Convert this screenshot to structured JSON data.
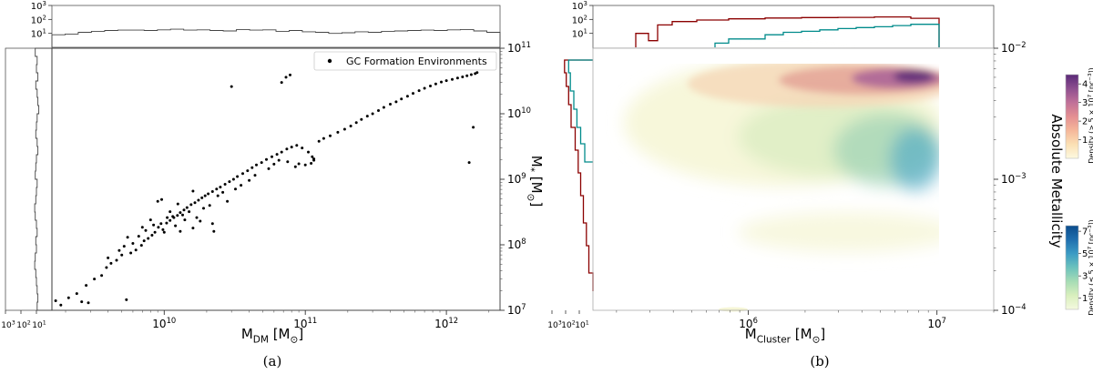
{
  "colors": {
    "scatter": "#000000",
    "histogram_a": "#444444",
    "dense_hist": "#8b0000",
    "sparse_hist": "#008b8b",
    "cmap_dense": [
      "#fdf9e0",
      "#fbe0b4",
      "#f5b79a",
      "#e48f92",
      "#c07098",
      "#8e4f8f",
      "#5b2a78"
    ],
    "cmap_sparse": [
      "#f4f9df",
      "#d9efbd",
      "#a6dcb5",
      "#6cc2bd",
      "#3c9bc4",
      "#1f6fae",
      "#0b4c8c"
    ]
  },
  "chart_data": [
    {
      "panel": "a",
      "caption": "(a)",
      "type": "scatter",
      "xlabel_html": [
        "M",
        "DM",
        " [M",
        "⊙",
        "]"
      ],
      "ylabel_html": [
        "M",
        "*",
        " [M",
        "⊙",
        "]"
      ],
      "x_scale": "log",
      "y_scale": "log",
      "xlim": [
        1600000000.0,
        2400000000000.0
      ],
      "ylim": [
        10000000.0,
        100000000000.0
      ],
      "x_ticks": [
        {
          "v": 10000000000.0,
          "base": "10",
          "exp": "10"
        },
        {
          "v": 100000000000.0,
          "base": "10",
          "exp": "11"
        },
        {
          "v": 1000000000000.0,
          "base": "10",
          "exp": "12"
        }
      ],
      "y_ticks": [
        {
          "v": 10000000.0,
          "base": "10",
          "exp": "7"
        },
        {
          "v": 100000000.0,
          "base": "10",
          "exp": "8"
        },
        {
          "v": 1000000000.0,
          "base": "10",
          "exp": "9"
        },
        {
          "v": 10000000000.0,
          "base": "10",
          "exp": "10"
        },
        {
          "v": 100000000000.0,
          "base": "10",
          "exp": "11"
        }
      ],
      "hist_ticks": [
        {
          "v": 1000,
          "base": "10",
          "exp": "3"
        },
        {
          "v": 100,
          "base": "10",
          "exp": "2"
        },
        {
          "v": 10,
          "base": "10",
          "exp": "1"
        }
      ],
      "legend": {
        "label": "GC Formation Environments",
        "position": "top-right"
      },
      "series": [
        {
          "name": "GC Formation Environments",
          "points": [
            [
              1700000000.0,
              14000000.0
            ],
            [
              1850000000.0,
              12000000.0
            ],
            [
              2100000000.0,
              15500000.0
            ],
            [
              2600000000.0,
              13500000.0
            ],
            [
              2900000000.0,
              13000000.0
            ],
            [
              2400000000.0,
              18000000.0
            ],
            [
              2800000000.0,
              24000000.0
            ],
            [
              3200000000.0,
              30000000.0
            ],
            [
              3600000000.0,
              34000000.0
            ],
            [
              3900000000.0,
              45000000.0
            ],
            [
              4200000000.0,
              52000000.0
            ],
            [
              4000000000.0,
              63000000.0
            ],
            [
              4600000000.0,
              58000000.0
            ],
            [
              5000000000.0,
              70000000.0
            ],
            [
              5400000000.0,
              14500000.0
            ],
            [
              5800000000.0,
              75000000.0
            ],
            [
              5200000000.0,
              95000000.0
            ],
            [
              6300000000.0,
              83000000.0
            ],
            [
              6900000000.0,
              98000000.0
            ],
            [
              7200000000.0,
              115000000.0
            ],
            [
              7700000000.0,
              125000000.0
            ],
            [
              8200000000.0,
              140000000.0
            ],
            [
              7400000000.0,
              165000000.0
            ],
            [
              8600000000.0,
              155000000.0
            ],
            [
              9100000000.0,
              185000000.0
            ],
            [
              9800000000.0,
              170000000.0
            ],
            [
              10400000000.0,
              215000000.0
            ],
            [
              11000000000.0,
              235000000.0
            ],
            [
              11700000000.0,
              260000000.0
            ],
            [
              12400000000.0,
              280000000.0
            ],
            [
              13000000000.0,
              310000000.0
            ],
            [
              13800000000.0,
              340000000.0
            ],
            [
              14500000000.0,
              370000000.0
            ],
            [
              15500000000.0,
              410000000.0
            ],
            [
              16500000000.0,
              440000000.0
            ],
            [
              17500000000.0,
              480000000.0
            ],
            [
              18500000000.0,
              520000000.0
            ],
            [
              19500000000.0,
              560000000.0
            ],
            [
              20500000000.0,
              600000000.0
            ],
            [
              22000000000.0,
              650000000.0
            ],
            [
              23500000000.0,
              710000000.0
            ],
            [
              25000000000.0,
              760000000.0
            ],
            [
              27000000000.0,
              840000000.0
            ],
            [
              29000000000.0,
              920000000.0
            ],
            [
              31000000000.0,
              1000000000.0
            ],
            [
              33000000000.0,
              1100000000.0
            ],
            [
              36000000000.0,
              1220000000.0
            ],
            [
              39000000000.0,
              1350000000.0
            ],
            [
              42000000000.0,
              1500000000.0
            ],
            [
              45000000000.0,
              1650000000.0
            ],
            [
              49000000000.0,
              1800000000.0
            ],
            [
              53000000000.0,
              2000000000.0
            ],
            [
              58000000000.0,
              2200000000.0
            ],
            [
              63000000000.0,
              2400000000.0
            ],
            [
              68000000000.0,
              2600000000.0
            ],
            [
              74000000000.0,
              2900000000.0
            ],
            [
              80000000000.0,
              3100000000.0
            ],
            [
              87000000000.0,
              3300000000.0
            ],
            [
              95000000000.0,
              3000000000.0
            ],
            [
              105000000000.0,
              2600000000.0
            ],
            [
              112000000000.0,
              2200000000.0
            ],
            [
              115000000000.0,
              1950000000.0
            ],
            [
              110000000000.0,
              1750000000.0
            ],
            [
              100000000000.0,
              1650000000.0
            ],
            [
              90000000000.0,
              1720000000.0
            ],
            [
              75000000000.0,
              1850000000.0
            ],
            [
              65000000000.0,
              1950000000.0
            ],
            [
              85000000000.0,
              1550000000.0
            ],
            [
              115000000000.0,
              2050000000.0
            ],
            [
              125000000000.0,
              3800000000.0
            ],
            [
              135000000000.0,
              4200000000.0
            ],
            [
              150000000000.0,
              4600000000.0
            ],
            [
              170000000000.0,
              5200000000.0
            ],
            [
              190000000000.0,
              5800000000.0
            ],
            [
              210000000000.0,
              6500000000.0
            ],
            [
              230000000000.0,
              7300000000.0
            ],
            [
              250000000000.0,
              8200000000.0
            ],
            [
              275000000000.0,
              9200000000.0
            ],
            [
              300000000000.0,
              10000000000.0
            ],
            [
              330000000000.0,
              11200000000.0
            ],
            [
              360000000000.0,
              12500000000.0
            ],
            [
              400000000000.0,
              14000000000.0
            ],
            [
              440000000000.0,
              15200000000.0
            ],
            [
              480000000000.0,
              16800000000.0
            ],
            [
              530000000000.0,
              18500000000.0
            ],
            [
              580000000000.0,
              20500000000.0
            ],
            [
              640000000000.0,
              22500000000.0
            ],
            [
              700000000000.0,
              24500000000.0
            ],
            [
              770000000000.0,
              26500000000.0
            ],
            [
              840000000000.0,
              28500000000.0
            ],
            [
              920000000000.0,
              30500000000.0
            ],
            [
              1000000000000.0,
              32000000000.0
            ],
            [
              1100000000000.0,
              33500000000.0
            ],
            [
              1200000000000.0,
              35000000000.0
            ],
            [
              1300000000000.0,
              36500000000.0
            ],
            [
              1400000000000.0,
              38000000000.0
            ],
            [
              1500000000000.0,
              39500000000.0
            ],
            [
              1600000000000.0,
              41000000000.0
            ],
            [
              1650000000000.0,
              42500000000.0
            ],
            [
              1550000000000.0,
              6200000000.0
            ],
            [
              1450000000000.0,
              1800000000.0
            ],
            [
              68000000000.0,
              30000000000.0
            ],
            [
              73000000000.0,
              36000000000.0
            ],
            [
              78000000000.0,
              39000000000.0
            ],
            [
              30000000000.0,
              26000000000.0
            ],
            [
              9000000000.0,
              460000000.0
            ],
            [
              9600000000.0,
              490000000.0
            ],
            [
              11000000000.0,
              320000000.0
            ],
            [
              12500000000.0,
              420000000.0
            ],
            [
              15000000000.0,
              320000000.0
            ],
            [
              17000000000.0,
              260000000.0
            ],
            [
              22000000000.0,
              210000000.0
            ],
            [
              22500000000.0,
              160000000.0
            ],
            [
              14000000000.0,
              240000000.0
            ],
            [
              12000000000.0,
              195000000.0
            ],
            [
              10000000000.0,
              155000000.0
            ],
            [
              8000000000.0,
              240000000.0
            ],
            [
              16000000000.0,
              660000000.0
            ],
            [
              24000000000.0,
              560000000.0
            ],
            [
              26000000000.0,
              630000000.0
            ],
            [
              35000000000.0,
              810000000.0
            ],
            [
              40000000000.0,
              960000000.0
            ],
            [
              44000000000.0,
              1150000000.0
            ],
            [
              60000000000.0,
              1700000000.0
            ],
            [
              55000000000.0,
              1450000000.0
            ],
            [
              32000000000.0,
              710000000.0
            ],
            [
              28000000000.0,
              460000000.0
            ],
            [
              21000000000.0,
              400000000.0
            ],
            [
              19000000000.0,
              360000000.0
            ],
            [
              13500000000.0,
              285000000.0
            ],
            [
              11500000000.0,
              270000000.0
            ],
            [
              9500000000.0,
              210000000.0
            ],
            [
              6000000000.0,
              105000000.0
            ],
            [
              5500000000.0,
              130000000.0
            ],
            [
              6600000000.0,
              135000000.0
            ],
            [
              4800000000.0,
              82000000.0
            ],
            [
              7000000000.0,
              185000000.0
            ],
            [
              8400000000.0,
              200000000.0
            ],
            [
              18000000000.0,
              230000000.0
            ],
            [
              16000000000.0,
              180000000.0
            ],
            [
              13000000000.0,
              160000000.0
            ],
            [
              10500000000.0,
              260000000.0
            ]
          ]
        }
      ]
    },
    {
      "panel": "b",
      "caption": "(b)",
      "type": "heatmap",
      "xlabel_html": [
        "M",
        "Cluster",
        " [M",
        "⊙",
        "]"
      ],
      "ylabel": "Absolute Metallicity",
      "x_scale": "log",
      "y_scale": "log",
      "xlim": [
        150000.0,
        20000000.0
      ],
      "ylim": [
        0.0001,
        0.01
      ],
      "x_ticks": [
        {
          "v": 1000000.0,
          "base": "10",
          "exp": "6"
        },
        {
          "v": 10000000.0,
          "base": "10",
          "exp": "7"
        }
      ],
      "y_ticks": [
        {
          "v": 0.0001,
          "base": "10",
          "exp": "−4"
        },
        {
          "v": 0.001,
          "base": "10",
          "exp": "−3"
        },
        {
          "v": 0.01,
          "base": "10",
          "exp": "−2"
        }
      ],
      "hist_ticks": [
        {
          "v": 1000,
          "base": "10",
          "exp": "3"
        },
        {
          "v": 100,
          "base": "10",
          "exp": "2"
        },
        {
          "v": 10,
          "base": "10",
          "exp": "1"
        }
      ],
      "series": [
        {
          "name": "Density (> 5 × 10⁷ [pc⁻³])",
          "colorbar_ticks": [
            1,
            2,
            3,
            4
          ]
        },
        {
          "name": "Density (≤ 5 × 10⁷ [pc⁻³])",
          "colorbar_ticks": [
            1,
            3,
            5,
            7
          ]
        }
      ],
      "colorbar_dense": {
        "label_parts": [
          "Density (> 5 × 10",
          "7",
          " [pc",
          "−3",
          "])"
        ],
        "ticks": [
          1,
          2,
          3,
          4
        ],
        "range": [
          0,
          4.5
        ]
      },
      "colorbar_sparse": {
        "label_parts": [
          "Density (≤ 5 × 10",
          "7",
          " [pc",
          "−3",
          "])"
        ],
        "ticks": [
          1,
          3,
          5,
          7
        ],
        "range": [
          0,
          7.5
        ]
      }
    }
  ]
}
